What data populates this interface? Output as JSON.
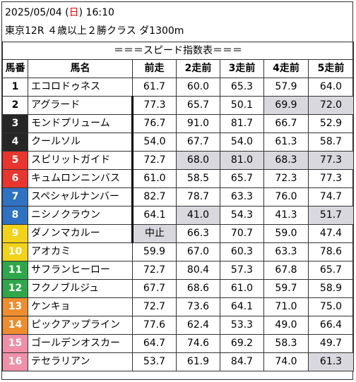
{
  "header": {
    "date": "2025/05/04",
    "day_open": " (",
    "day": "日",
    "day_close": ")",
    "time": " 16:10",
    "race": "東京12R ４歳以上２勝クラス ダ1300m"
  },
  "table": {
    "title": "＝＝＝スピード指数表＝＝＝",
    "columns": [
      "馬番",
      "馬名",
      "前走",
      "2走前",
      "3走前",
      "4走前",
      "5走前"
    ],
    "rows": [
      {
        "num": "1",
        "name": "エコロドゥネス",
        "v": [
          "61.7",
          "60.0",
          "65.3",
          "57.9",
          "64.0"
        ],
        "shade": [
          false,
          false,
          false,
          false,
          false
        ]
      },
      {
        "num": "2",
        "name": "アグラード",
        "v": [
          "77.3",
          "65.7",
          "50.1",
          "69.9",
          "72.0"
        ],
        "shade": [
          false,
          false,
          false,
          true,
          true
        ]
      },
      {
        "num": "3",
        "name": "モンドプリューム",
        "v": [
          "76.7",
          "91.0",
          "81.7",
          "66.7",
          "52.9"
        ],
        "shade": [
          false,
          false,
          false,
          false,
          false
        ]
      },
      {
        "num": "4",
        "name": "クールソル",
        "v": [
          "54.0",
          "67.7",
          "54.0",
          "61.3",
          "58.7"
        ],
        "shade": [
          false,
          false,
          false,
          false,
          false
        ]
      },
      {
        "num": "5",
        "name": "スピリットガイド",
        "v": [
          "72.7",
          "68.0",
          "81.0",
          "68.3",
          "77.3"
        ],
        "shade": [
          false,
          true,
          true,
          true,
          true
        ]
      },
      {
        "num": "6",
        "name": "キュムロンニンバス",
        "v": [
          "61.0",
          "58.5",
          "65.7",
          "72.3",
          "77.3"
        ],
        "shade": [
          false,
          false,
          false,
          false,
          false
        ]
      },
      {
        "num": "7",
        "name": "スペシャルナンバー",
        "v": [
          "82.7",
          "78.7",
          "63.3",
          "76.0",
          "74.7"
        ],
        "shade": [
          false,
          false,
          false,
          false,
          false
        ]
      },
      {
        "num": "8",
        "name": "ニシノクラウン",
        "v": [
          "64.1",
          "41.0",
          "54.3",
          "41.3",
          "51.7"
        ],
        "shade": [
          false,
          true,
          false,
          false,
          true
        ]
      },
      {
        "num": "9",
        "name": "ダノンマカルー",
        "v": [
          "中止",
          "66.3",
          "70.7",
          "59.0",
          "47.4"
        ],
        "shade": [
          true,
          false,
          false,
          false,
          false
        ]
      },
      {
        "num": "10",
        "name": "アオカミ",
        "v": [
          "59.9",
          "67.0",
          "60.3",
          "63.3",
          "78.6"
        ],
        "shade": [
          false,
          false,
          false,
          false,
          false
        ]
      },
      {
        "num": "11",
        "name": "サフランヒーロー",
        "v": [
          "72.7",
          "80.4",
          "57.3",
          "67.8",
          "65.7"
        ],
        "shade": [
          false,
          false,
          false,
          false,
          false
        ]
      },
      {
        "num": "12",
        "name": "フクノブルジュ",
        "v": [
          "67.7",
          "68.6",
          "61.0",
          "59.7",
          "58.9"
        ],
        "shade": [
          false,
          false,
          false,
          false,
          false
        ]
      },
      {
        "num": "13",
        "name": "ケンキョ",
        "v": [
          "72.7",
          "73.6",
          "64.1",
          "71.0",
          "75.0"
        ],
        "shade": [
          false,
          false,
          false,
          false,
          false
        ]
      },
      {
        "num": "14",
        "name": "ピックアップライン",
        "v": [
          "77.6",
          "62.4",
          "53.3",
          "49.0",
          "66.4"
        ],
        "shade": [
          false,
          false,
          false,
          false,
          false
        ]
      },
      {
        "num": "15",
        "name": "ゴールデンオスカー",
        "v": [
          "64.7",
          "74.6",
          "69.2",
          "58.3",
          "49.7"
        ],
        "shade": [
          false,
          false,
          false,
          false,
          false
        ]
      },
      {
        "num": "16",
        "name": "テセラリアン",
        "v": [
          "53.7",
          "61.9",
          "84.7",
          "74.0",
          "61.3"
        ],
        "shade": [
          false,
          false,
          false,
          false,
          true
        ]
      }
    ]
  },
  "colors": {
    "frame_black": "#262626",
    "frame_red": "#e8352e",
    "frame_blue": "#2f72c2",
    "frame_yellow": "#f2d21a",
    "frame_green": "#2fa64a",
    "frame_orange": "#ee8d2e",
    "frame_pink": "#ef8fa8",
    "shade": "#d8d8de",
    "sunday": "#e00000"
  }
}
